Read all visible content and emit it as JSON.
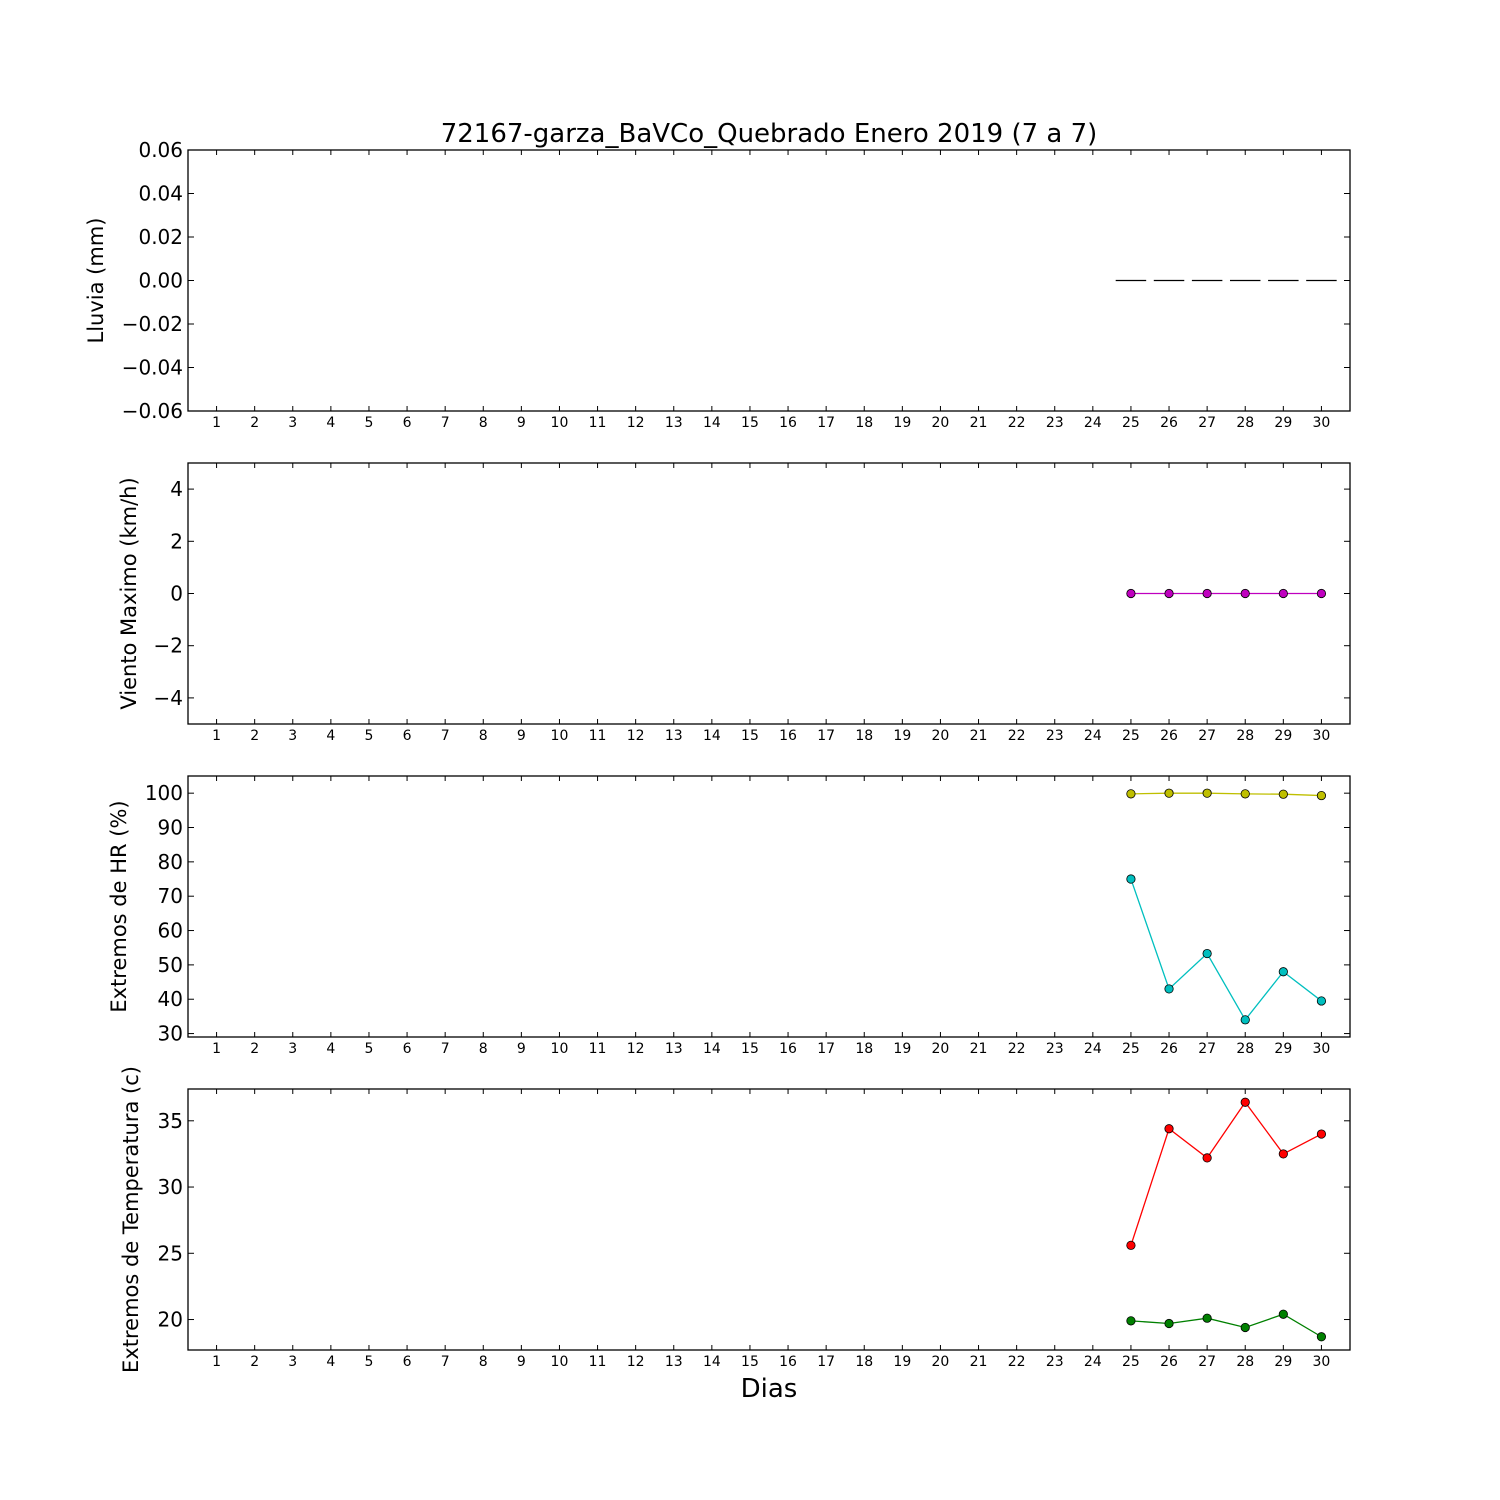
{
  "title": "72167-garza_BaVCo_Quebrado Enero 2019  (7 a 7)",
  "xlabel": "Dias",
  "chart_data": [
    {
      "type": "bar",
      "ylabel": "Lluvia (mm)",
      "x_categories": [
        1,
        2,
        3,
        4,
        5,
        6,
        7,
        8,
        9,
        10,
        11,
        12,
        13,
        14,
        15,
        16,
        17,
        18,
        19,
        20,
        21,
        22,
        23,
        24,
        25,
        26,
        27,
        28,
        29,
        30
      ],
      "ylim": [
        -0.06,
        0.06
      ],
      "yticks": [
        "0.06",
        "0.04",
        "0.02",
        "0.00",
        "−0.02",
        "−0.04",
        "−0.06"
      ],
      "ytick_values": [
        0.06,
        0.04,
        0.02,
        0.0,
        -0.02,
        -0.04,
        -0.06
      ],
      "series": [
        {
          "color": "#000000",
          "style": "bar",
          "x": [
            25,
            26,
            27,
            28,
            29,
            30
          ],
          "values": [
            0,
            0,
            0,
            0,
            0,
            0
          ]
        }
      ]
    },
    {
      "type": "line",
      "ylabel": "Viento Maximo (km/h)",
      "x_categories": [
        1,
        2,
        3,
        4,
        5,
        6,
        7,
        8,
        9,
        10,
        11,
        12,
        13,
        14,
        15,
        16,
        17,
        18,
        19,
        20,
        21,
        22,
        23,
        24,
        25,
        26,
        27,
        28,
        29,
        30
      ],
      "ylim": [
        -5,
        5
      ],
      "yticks": [
        "4",
        "2",
        "0",
        "−2",
        "−4"
      ],
      "ytick_values": [
        4,
        2,
        0,
        -2,
        -4
      ],
      "series": [
        {
          "color": "#bf00bf",
          "style": "line",
          "x": [
            25,
            26,
            27,
            28,
            29,
            30
          ],
          "values": [
            0,
            0,
            0,
            0,
            0,
            0
          ]
        }
      ]
    },
    {
      "type": "line",
      "ylabel": "Extremos de HR (%)",
      "x_categories": [
        1,
        2,
        3,
        4,
        5,
        6,
        7,
        8,
        9,
        10,
        11,
        12,
        13,
        14,
        15,
        16,
        17,
        18,
        19,
        20,
        21,
        22,
        23,
        24,
        25,
        26,
        27,
        28,
        29,
        30
      ],
      "ylim": [
        29,
        105
      ],
      "yticks": [
        "100",
        "90",
        "80",
        "70",
        "60",
        "50",
        "40",
        "30"
      ],
      "ytick_values": [
        100,
        90,
        80,
        70,
        60,
        50,
        40,
        30
      ],
      "series": [
        {
          "color": "#bfbf00",
          "style": "line",
          "x": [
            25,
            26,
            27,
            28,
            29,
            30
          ],
          "values": [
            99.8,
            100,
            100,
            99.8,
            99.7,
            99.3
          ]
        },
        {
          "color": "#00bfbf",
          "style": "line",
          "x": [
            25,
            26,
            27,
            28,
            29,
            30
          ],
          "values": [
            75,
            43,
            53.3,
            34,
            48,
            39.5
          ]
        }
      ]
    },
    {
      "type": "line",
      "ylabel": "Extremos de Temperatura (c)",
      "x_categories": [
        1,
        2,
        3,
        4,
        5,
        6,
        7,
        8,
        9,
        10,
        11,
        12,
        13,
        14,
        15,
        16,
        17,
        18,
        19,
        20,
        21,
        22,
        23,
        24,
        25,
        26,
        27,
        28,
        29,
        30
      ],
      "ylim": [
        17.7,
        37.4
      ],
      "yticks": [
        "35",
        "30",
        "25",
        "20"
      ],
      "ytick_values": [
        35,
        30,
        25,
        20
      ],
      "series": [
        {
          "color": "#ff0000",
          "style": "line",
          "x": [
            25,
            26,
            27,
            28,
            29,
            30
          ],
          "values": [
            25.6,
            34.4,
            32.2,
            36.4,
            32.5,
            34
          ]
        },
        {
          "color": "#008000",
          "style": "line",
          "x": [
            25,
            26,
            27,
            28,
            29,
            30
          ],
          "values": [
            19.9,
            19.7,
            20.1,
            19.4,
            20.4,
            18.7
          ]
        }
      ]
    }
  ]
}
